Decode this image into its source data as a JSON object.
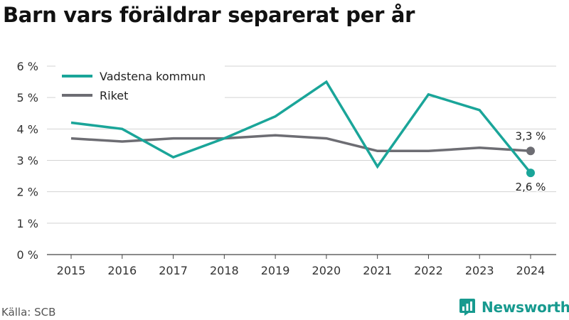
{
  "title": "Barn vars föräldrar separerat per år",
  "source": "Källa: SCB",
  "brand": {
    "name": "Newsworthy",
    "icon": "newsworthy-logo-icon",
    "color": "#179a8f"
  },
  "chart_data": {
    "type": "line",
    "title": "Barn vars föräldrar separerat per år",
    "xlabel": "",
    "ylabel": "",
    "x": [
      "2015",
      "2016",
      "2017",
      "2018",
      "2019",
      "2020",
      "2021",
      "2022",
      "2023",
      "2024"
    ],
    "ylim": [
      0,
      6
    ],
    "yticks": [
      0,
      1,
      2,
      3,
      4,
      5,
      6
    ],
    "ytick_labels": [
      "0 %",
      "1 %",
      "2 %",
      "3 %",
      "4 %",
      "5 %",
      "6 %"
    ],
    "grid": "horizontal",
    "legend_position": "top-left",
    "series": [
      {
        "name": "Vadstena kommun",
        "color": "#1aa599",
        "values": [
          4.2,
          4.0,
          3.1,
          3.7,
          4.4,
          5.5,
          2.8,
          5.1,
          4.6,
          2.6
        ],
        "end_label": "2,6 %"
      },
      {
        "name": "Riket",
        "color": "#6d6d73",
        "values": [
          3.7,
          3.6,
          3.7,
          3.7,
          3.8,
          3.7,
          3.3,
          3.3,
          3.4,
          3.3
        ],
        "end_label": "3,3 %"
      }
    ]
  }
}
